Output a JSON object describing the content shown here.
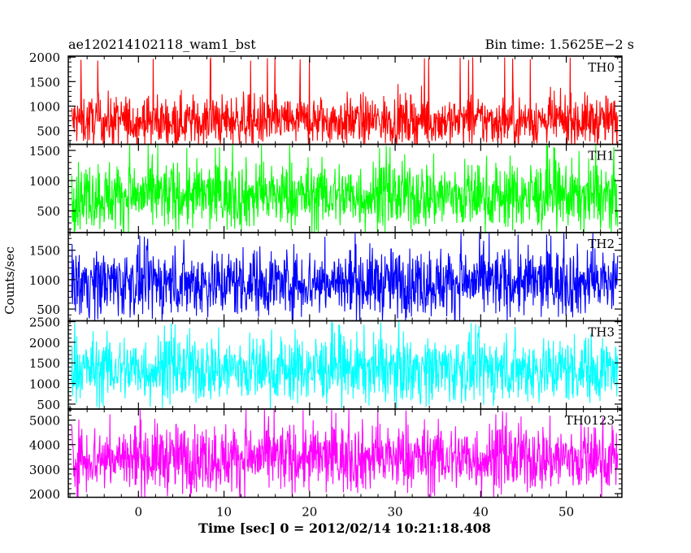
{
  "title_left": "ae120214102118_wam1_bst",
  "title_right": "Bin time: 1.5625E−2 s",
  "ylabel": "Counts/sec",
  "xlabel": "Time [sec] 0 = 2012/02/14 10:21:18.408",
  "chart_data": {
    "type": "line",
    "x_range": [
      -8.2,
      56.5
    ],
    "x_ticks": [
      0,
      10,
      20,
      30,
      40,
      50
    ],
    "x_tick_labels": [
      "0",
      "10",
      "20",
      "30",
      "40",
      "50"
    ],
    "x_data_range": [
      -7.8,
      56.0
    ],
    "bin_time_s": 0.015625,
    "grid": false,
    "panels": [
      {
        "name": "TH0",
        "color": "#ff0000",
        "ylim": [
          220,
          2020
        ],
        "y_ticks": [
          500,
          1000,
          1500,
          2000
        ],
        "y_tick_labels": [
          "500",
          "1000",
          "1500",
          "2000"
        ],
        "mean": 700,
        "typical_min": 180,
        "typical_max": 1500,
        "peak": 2000
      },
      {
        "name": "TH1",
        "color": "#00ff00",
        "ylim": [
          140,
          1600
        ],
        "y_ticks": [
          500,
          1000,
          1500
        ],
        "y_tick_labels": [
          "500",
          "1000",
          "1500"
        ],
        "mean": 750,
        "typical_min": 150,
        "typical_max": 1600,
        "peak": 1600
      },
      {
        "name": "TH2",
        "color": "#0000ff",
        "ylim": [
          300,
          1800
        ],
        "y_ticks": [
          500,
          1000,
          1500
        ],
        "y_tick_labels": [
          "500",
          "1000",
          "1500"
        ],
        "mean": 950,
        "typical_min": 300,
        "typical_max": 1800,
        "peak": 1800
      },
      {
        "name": "TH3",
        "color": "#00ffff",
        "ylim": [
          380,
          2520
        ],
        "y_ticks": [
          500,
          1000,
          1500,
          2000,
          2500
        ],
        "y_tick_labels": [
          "500",
          "1000",
          "1500",
          "2000",
          "2500"
        ],
        "mean": 1350,
        "typical_min": 400,
        "typical_max": 2500,
        "peak": 2500
      },
      {
        "name": "TH0123",
        "color": "#ff00ff",
        "ylim": [
          1850,
          5450
        ],
        "y_ticks": [
          2000,
          3000,
          4000,
          5000
        ],
        "y_tick_labels": [
          "2000",
          "3000",
          "4000",
          "5000"
        ],
        "mean": 3450,
        "typical_min": 1850,
        "typical_max": 5450,
        "peak": 5450
      }
    ]
  }
}
